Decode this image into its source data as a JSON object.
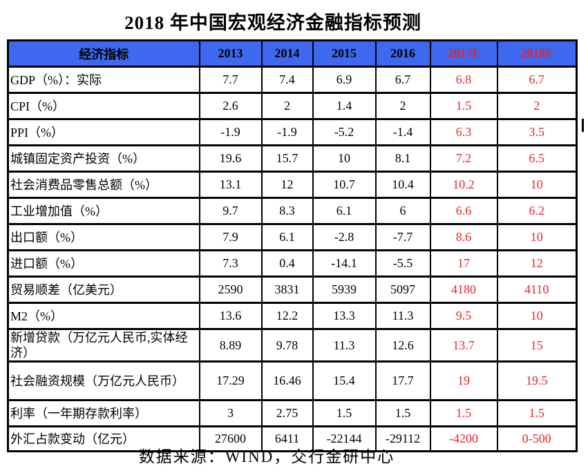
{
  "title": "2018 年中国宏观经济金融指标预测",
  "footer": "数据来源：WIND，交行金研中心",
  "colors": {
    "header_bg": "#3d68ef",
    "forecast_red": "#e8242b",
    "text_black": "#000000",
    "border": "#000000"
  },
  "table": {
    "header": [
      "经济指标",
      "2013",
      "2014",
      "2015",
      "2016",
      "2017F",
      "2018F"
    ],
    "forecast_header_indices": [
      5,
      6
    ],
    "forecast_value_indices": [
      4,
      5
    ],
    "rows": [
      {
        "label": "GDP（%）：实际",
        "values": [
          "7.7",
          "7.4",
          "6.9",
          "6.7",
          "6.8",
          "6.7"
        ]
      },
      {
        "label": "CPI（%）",
        "values": [
          "2.6",
          "2",
          "1.4",
          "2",
          "1.5",
          "2"
        ]
      },
      {
        "label": "PPI（%）",
        "values": [
          "-1.9",
          "-1.9",
          "-5.2",
          "-1.4",
          "6.3",
          "3.5"
        ]
      },
      {
        "label": "城镇固定资产投资（%）",
        "values": [
          "19.6",
          "15.7",
          "10",
          "8.1",
          "7.2",
          "6.5"
        ]
      },
      {
        "label": "社会消费品零售总额（%）",
        "values": [
          "13.1",
          "12",
          "10.7",
          "10.4",
          "10.2",
          "10"
        ]
      },
      {
        "label": "工业增加值（%）",
        "values": [
          "9.7",
          "8.3",
          "6.1",
          "6",
          "6.6",
          "6.2"
        ]
      },
      {
        "label": "出口额（%）",
        "values": [
          "7.9",
          "6.1",
          "-2.8",
          "-7.7",
          "8.6",
          "10"
        ]
      },
      {
        "label": "进口额（%）",
        "values": [
          "7.3",
          "0.4",
          "-14.1",
          "-5.5",
          "17",
          "12"
        ]
      },
      {
        "label": "贸易顺差（亿美元）",
        "values": [
          "2590",
          "3831",
          "5939",
          "5097",
          "4180",
          "4110"
        ]
      },
      {
        "label": "M2（%）",
        "values": [
          "13.6",
          "12.2",
          "13.3",
          "11.3",
          "9.5",
          "10"
        ]
      },
      {
        "label": "新增贷款（万亿元人民币,实体经济）",
        "values": [
          "8.89",
          "9.78",
          "11.3",
          "12.6",
          "13.7",
          "15"
        ]
      },
      {
        "label": "社会融资规模（万亿元人民币）",
        "values": [
          "17.29",
          "16.46",
          "15.4",
          "17.7",
          "19",
          "19.5"
        ]
      },
      {
        "label": "利率（一年期存款利率）",
        "values": [
          "3",
          "2.75",
          "1.5",
          "1.5",
          "1.5",
          "1.5"
        ]
      },
      {
        "label": "外汇占款变动（亿元）",
        "values": [
          "27600",
          "6411",
          "-22144",
          "-29112",
          "-4200",
          "0-500"
        ]
      }
    ]
  }
}
